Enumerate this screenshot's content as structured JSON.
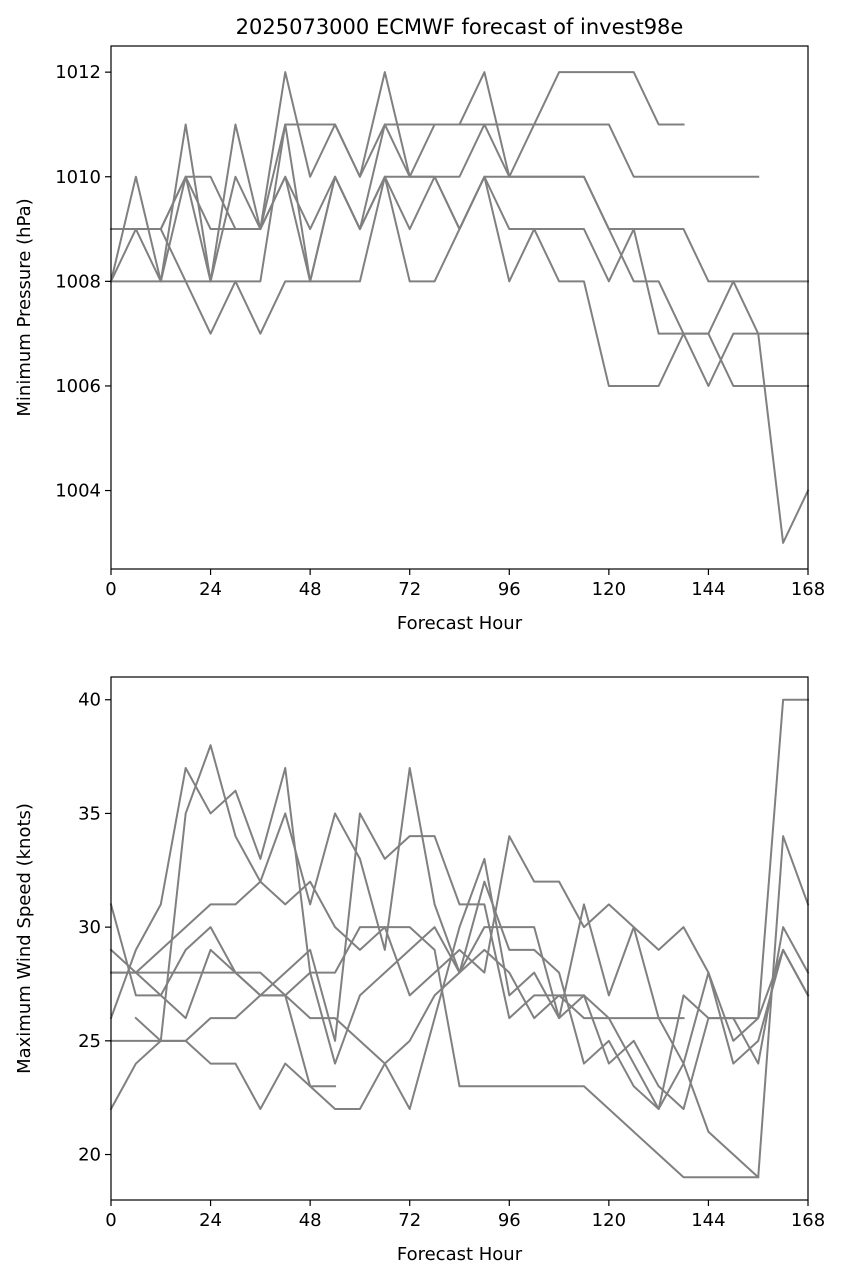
{
  "figure_title": "2025073000 ECMWF forecast of invest98e",
  "colors": {
    "series": "#808080",
    "axes": "#000000",
    "background": "#ffffff"
  },
  "chart_data": [
    {
      "type": "line",
      "title": "2025073000 ECMWF forecast of invest98e",
      "xlabel": "Forecast Hour",
      "ylabel": "Minimum Pressure (hPa)",
      "xlim": [
        0,
        168
      ],
      "ylim": [
        1002.5,
        1012.5
      ],
      "xticks": [
        0,
        24,
        48,
        72,
        96,
        120,
        144,
        168
      ],
      "yticks": [
        1004,
        1006,
        1008,
        1010,
        1012
      ],
      "grid": false,
      "series": [
        {
          "x": [
            0,
            6,
            12,
            18,
            24,
            30,
            36,
            42,
            48,
            54,
            60,
            66,
            72,
            78,
            84,
            90,
            96,
            102,
            108,
            114,
            120,
            126,
            132,
            138
          ],
          "values": [
            1008,
            1009,
            1008,
            1011,
            1008,
            1011,
            1009,
            1012,
            1010,
            1011,
            1010,
            1012,
            1010,
            1011,
            1011,
            1012,
            1010,
            1011,
            1012,
            1012,
            1012,
            1012,
            1011,
            1011
          ]
        },
        {
          "x": [
            0,
            6,
            12,
            18,
            24,
            30,
            36,
            42,
            48,
            54,
            60,
            66,
            72,
            78,
            84,
            90,
            96,
            102,
            108,
            114,
            120,
            126,
            132,
            138,
            144,
            150,
            156
          ],
          "values": [
            1008,
            1010,
            1008,
            1010,
            1008,
            1010,
            1009,
            1011,
            1011,
            1011,
            1010,
            1011,
            1011,
            1011,
            1011,
            1011,
            1011,
            1011,
            1011,
            1011,
            1011,
            1010,
            1010,
            1010,
            1010,
            1010,
            1010
          ]
        },
        {
          "x": [
            0,
            6,
            12,
            18,
            24,
            30,
            36,
            42,
            48,
            54,
            60,
            66,
            72,
            78,
            84,
            90,
            96,
            102,
            108,
            114,
            120,
            126,
            132,
            138,
            144,
            150,
            156,
            162,
            168
          ],
          "values": [
            1009,
            1009,
            1009,
            1010,
            1010,
            1009,
            1009,
            1010,
            1008,
            1010,
            1009,
            1011,
            1010,
            1010,
            1009,
            1010,
            1010,
            1010,
            1010,
            1010,
            1009,
            1009,
            1009,
            1009,
            1008,
            1008,
            1008,
            1008,
            1008
          ]
        },
        {
          "x": [
            0,
            6,
            12,
            18,
            24,
            30,
            36,
            42,
            48,
            54,
            60,
            66,
            72,
            78,
            84,
            90,
            96,
            102,
            108,
            114,
            120,
            126,
            132,
            138,
            144,
            150,
            156,
            162,
            168
          ],
          "values": [
            1008,
            1008,
            1008,
            1008,
            1008,
            1008,
            1008,
            1011,
            1008,
            1010,
            1009,
            1010,
            1009,
            1010,
            1010,
            1011,
            1010,
            1010,
            1010,
            1010,
            1009,
            1008,
            1008,
            1007,
            1006,
            1007,
            1007,
            1007,
            1007
          ]
        },
        {
          "x": [
            0,
            6,
            12,
            18,
            24,
            30,
            36,
            42,
            48,
            54,
            60,
            66,
            72,
            78,
            84,
            90,
            96,
            102,
            108,
            114,
            120,
            126,
            132,
            138,
            144,
            150,
            156,
            162,
            168
          ],
          "values": [
            1009,
            1009,
            1009,
            1008,
            1007,
            1008,
            1007,
            1008,
            1008,
            1008,
            1008,
            1010,
            1008,
            1008,
            1009,
            1010,
            1008,
            1009,
            1008,
            1008,
            1006,
            1006,
            1006,
            1007,
            1007,
            1006,
            1006,
            1006,
            1006
          ]
        },
        {
          "x": [
            0,
            6,
            12,
            18,
            24,
            30,
            36,
            42,
            48,
            54,
            60,
            66,
            72,
            78,
            84,
            90,
            96,
            102,
            108,
            114,
            120,
            126,
            132,
            138,
            144,
            150,
            156,
            162,
            168
          ],
          "values": [
            1009,
            1009,
            1009,
            1010,
            1009,
            1009,
            1009,
            1010,
            1009,
            1010,
            1009,
            1010,
            1010,
            1010,
            1009,
            1010,
            1009,
            1009,
            1009,
            1009,
            1008,
            1009,
            1007,
            1007,
            1007,
            1008,
            1007,
            1003,
            1004
          ]
        }
      ]
    },
    {
      "type": "line",
      "title": "",
      "xlabel": "Forecast Hour",
      "ylabel": "Maximum Wind Speed (knots)",
      "xlim": [
        0,
        168
      ],
      "ylim": [
        18,
        41
      ],
      "xticks": [
        0,
        24,
        48,
        72,
        96,
        120,
        144,
        168
      ],
      "yticks": [
        20,
        25,
        30,
        35,
        40
      ],
      "grid": false,
      "series": [
        {
          "x": [
            0,
            6,
            12,
            18,
            24,
            30,
            36,
            42,
            48,
            54
          ],
          "values": [
            28,
            28,
            28,
            28,
            28,
            28,
            28,
            27,
            23,
            23
          ]
        },
        {
          "x": [
            0,
            6,
            12,
            18,
            24,
            30,
            36,
            42,
            48,
            54,
            60,
            66,
            72,
            78,
            84,
            90,
            96,
            102,
            108,
            114,
            120,
            126,
            132,
            138
          ],
          "values": [
            26,
            29,
            31,
            37,
            35,
            36,
            33,
            37,
            28,
            24,
            27,
            28,
            29,
            30,
            28,
            30,
            30,
            30,
            26,
            27,
            26,
            26,
            26,
            26
          ]
        },
        {
          "x": [
            0,
            6,
            12,
            18,
            24,
            30,
            36,
            42,
            48,
            54,
            60,
            66,
            72,
            78,
            84,
            90,
            96,
            102,
            108,
            114,
            120,
            126,
            132,
            138,
            144,
            150,
            156
          ],
          "values": [
            28,
            28,
            29,
            30,
            31,
            31,
            32,
            31,
            32,
            30,
            29,
            30,
            30,
            29,
            23,
            23,
            23,
            23,
            23,
            23,
            22,
            21,
            20,
            19,
            19,
            19,
            19
          ]
        },
        {
          "x": [
            0,
            6,
            12,
            18,
            24,
            30,
            36,
            42,
            48,
            54,
            60,
            66,
            72,
            78,
            84,
            90,
            96,
            102,
            108,
            114,
            120,
            126,
            132,
            138,
            144,
            150,
            156,
            162,
            168
          ],
          "values": [
            31,
            27,
            27,
            29,
            30,
            28,
            27,
            27,
            26,
            26,
            25,
            24,
            25,
            27,
            28,
            29,
            28,
            26,
            27,
            27,
            24,
            25,
            23,
            22,
            26,
            26,
            24,
            30,
            28
          ]
        },
        {
          "x": [
            0,
            6,
            12,
            18,
            24,
            30,
            36,
            42,
            48,
            54,
            60,
            66,
            72,
            78,
            84,
            90,
            96,
            102,
            108,
            114,
            120,
            126,
            132,
            138,
            144,
            150,
            156,
            162,
            168
          ],
          "values": [
            29,
            28,
            27,
            26,
            29,
            28,
            27,
            27,
            28,
            28,
            30,
            30,
            27,
            28,
            29,
            28,
            34,
            32,
            32,
            30,
            31,
            30,
            29,
            30,
            28,
            25,
            26,
            40,
            40
          ]
        },
        {
          "x": [
            0,
            6,
            12,
            18,
            24,
            30,
            36,
            42,
            48,
            54,
            60,
            66,
            72,
            78,
            84,
            90,
            96,
            102,
            108,
            114,
            120,
            126,
            132,
            138,
            144,
            150,
            156,
            162,
            168
          ],
          "values": [
            22,
            24,
            25,
            25,
            24,
            24,
            22,
            24,
            23,
            22,
            22,
            24,
            22,
            26,
            30,
            33,
            27,
            28,
            26,
            31,
            27,
            30,
            26,
            24,
            28,
            24,
            25,
            29,
            27
          ]
        },
        {
          "x": [
            0,
            6,
            12,
            18,
            24,
            30,
            36,
            42,
            48,
            54,
            60,
            66,
            72,
            78,
            84,
            90,
            96,
            102,
            108,
            114,
            120,
            126,
            132,
            138,
            144,
            150,
            156,
            162,
            168
          ],
          "values": [
            25,
            25,
            25,
            25,
            26,
            26,
            27,
            28,
            29,
            25,
            35,
            33,
            34,
            34,
            31,
            31,
            26,
            27,
            27,
            26,
            26,
            24,
            22,
            24,
            21,
            20,
            19,
            34,
            31
          ]
        },
        {
          "x": [
            6,
            12,
            18,
            24,
            30,
            36,
            42,
            48,
            54,
            60,
            66,
            72,
            78,
            84,
            90,
            96,
            102,
            108,
            114,
            120,
            126,
            132,
            138,
            144,
            150,
            156,
            162,
            168
          ],
          "values": [
            26,
            25,
            35,
            38,
            34,
            32,
            35,
            31,
            35,
            33,
            29,
            37,
            31,
            28,
            32,
            29,
            29,
            28,
            24,
            25,
            23,
            22,
            27,
            26,
            26,
            26,
            29,
            27
          ]
        }
      ]
    }
  ]
}
